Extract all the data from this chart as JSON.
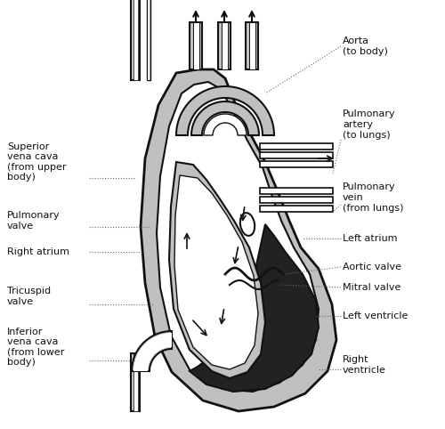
{
  "background_color": "#ffffff",
  "labels": {
    "aorta": "Aorta\n(to body)",
    "pulmonary_artery": "Pulmonary\nartery\n(to lungs)",
    "pulmonary_vein": "Pulmonary\nvein\n(from lungs)",
    "left_atrium": "Left atrium",
    "aortic_valve": "Aortic valve",
    "mitral_valve": "Mitral valve",
    "left_ventricle": "Left ventricle",
    "right_ventricle": "Right\nventricle",
    "superior_vena_cava": "Superior\nvena cava\n(from upper\nbody)",
    "pulmonary_valve": "Pulmonary\nvalve",
    "right_atrium": "Right atrium",
    "tricuspid_valve": "Tricuspid\nvalve",
    "inferior_vena_cava": "Inferior\nvena cava\n(from lower\nbody)"
  },
  "colors": {
    "gray_fill": "#c0c0c0",
    "dark_outline": "#111111",
    "black_fill": "#222222",
    "white": "#ffffff",
    "dotted_line": "#555555"
  }
}
